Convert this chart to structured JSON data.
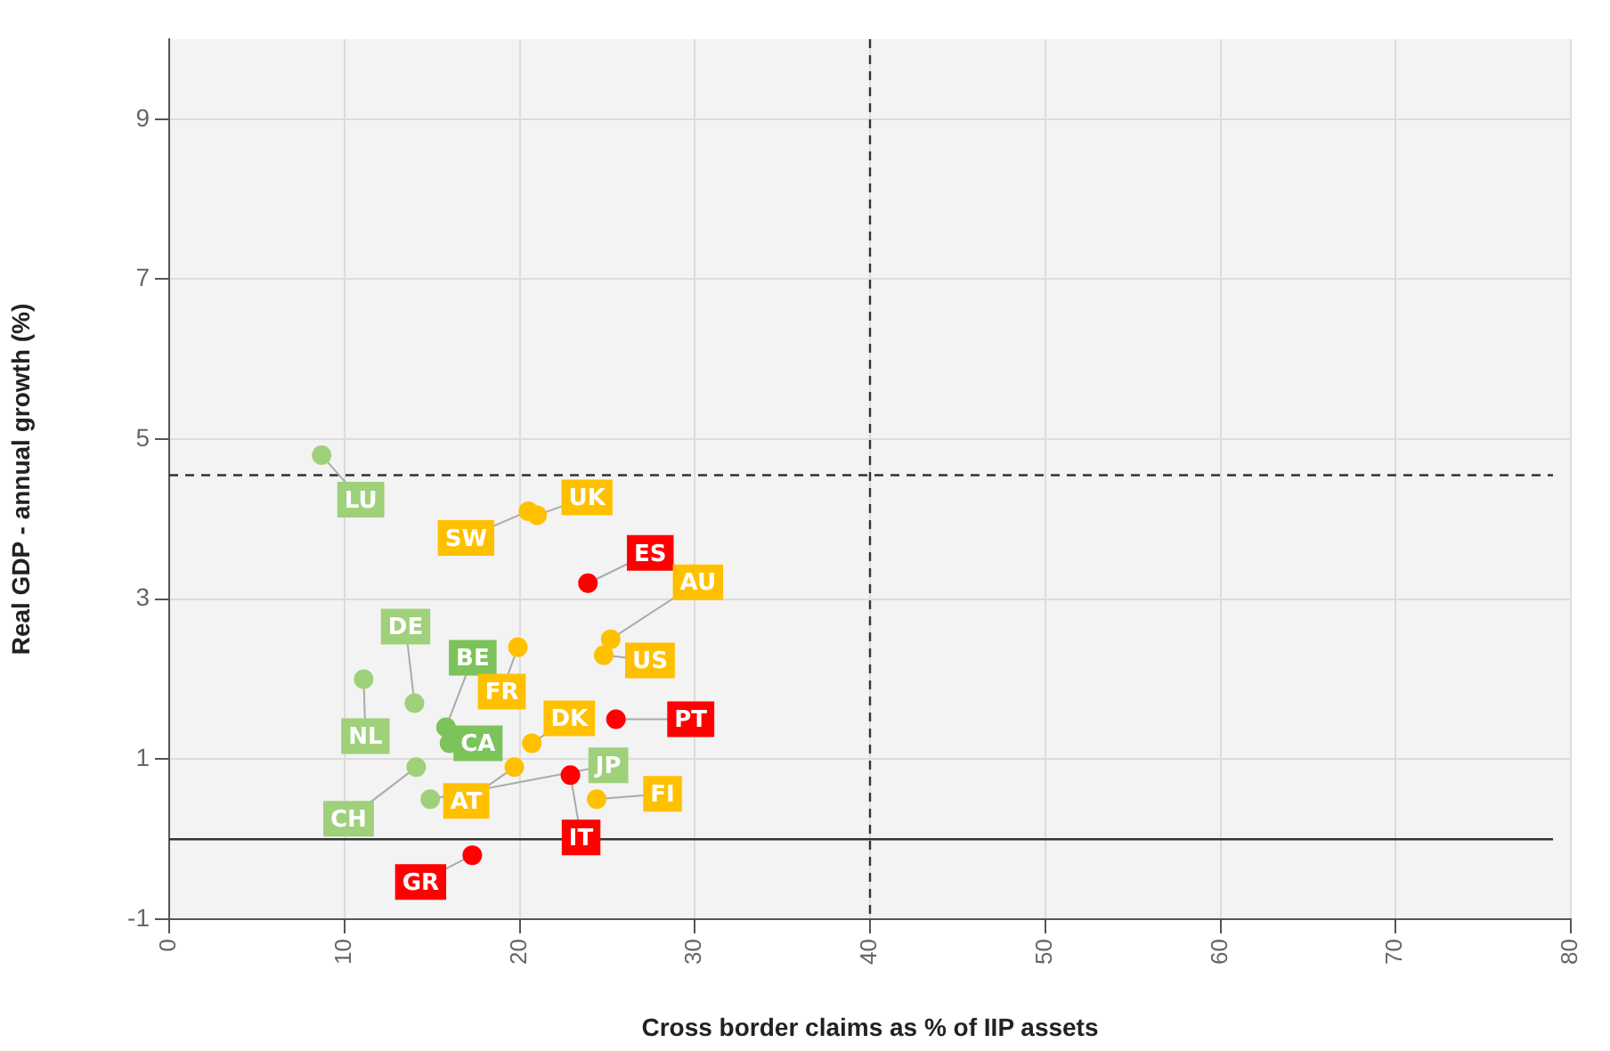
{
  "chart_data": {
    "type": "scatter",
    "xlabel": "Cross border claims as % of IIP assets",
    "ylabel": "Real GDP - annual growth (%)",
    "xlim": [
      0,
      80
    ],
    "xticks": [
      0,
      10,
      20,
      30,
      40,
      50,
      60,
      70,
      80
    ],
    "ylim": [
      -1,
      10
    ],
    "yticks": [
      -1,
      1,
      3,
      5,
      7,
      9
    ],
    "grid": true,
    "legend": false,
    "marker": "circle",
    "ref_lines": [
      {
        "axis": "y",
        "value": 4.55,
        "line_style": "dashed"
      },
      {
        "axis": "x",
        "value": 40,
        "line_style": "dashed"
      },
      {
        "axis": "y",
        "value": 0,
        "line_style": "solid"
      }
    ],
    "series": [
      {
        "name": "LU",
        "color": "#9fd07a",
        "x": [
          8.7
        ],
        "values": [
          4.8
        ]
      },
      {
        "name": "SW",
        "color": "#ffc000",
        "x": [
          20.5
        ],
        "values": [
          4.1
        ]
      },
      {
        "name": "UK",
        "color": "#ffc000",
        "x": [
          21
        ],
        "values": [
          4.05
        ]
      },
      {
        "name": "ES",
        "color": "#ff0000",
        "x": [
          23.9
        ],
        "values": [
          3.2
        ]
      },
      {
        "name": "AU",
        "color": "#ffc000",
        "x": [
          25.2
        ],
        "values": [
          2.5
        ]
      },
      {
        "name": "DE",
        "color": "#9fd07a",
        "x": [
          14
        ],
        "values": [
          1.7
        ]
      },
      {
        "name": "BE",
        "color": "#7cc35a",
        "x": [
          15.8
        ],
        "values": [
          1.4
        ]
      },
      {
        "name": "FR",
        "color": "#ffc000",
        "x": [
          19.9
        ],
        "values": [
          2.4
        ]
      },
      {
        "name": "US",
        "color": "#ffc000",
        "x": [
          24.8
        ],
        "values": [
          2.3
        ]
      },
      {
        "name": "PT",
        "color": "#ff0000",
        "x": [
          25.5
        ],
        "values": [
          1.5
        ]
      },
      {
        "name": "NL",
        "color": "#9fd07a",
        "x": [
          11.1
        ],
        "values": [
          2
        ]
      },
      {
        "name": "CA",
        "color": "#7cc35a",
        "x": [
          16
        ],
        "values": [
          1.2
        ]
      },
      {
        "name": "DK",
        "color": "#ffc000",
        "x": [
          20.7
        ],
        "values": [
          1.2
        ]
      },
      {
        "name": "JP",
        "color": "#9fd07a",
        "x": [
          14.9
        ],
        "values": [
          0.5
        ]
      },
      {
        "name": "AT",
        "color": "#ffc000",
        "x": [
          19.7
        ],
        "values": [
          0.9
        ]
      },
      {
        "name": "FI",
        "color": "#ffc000",
        "x": [
          24.4
        ],
        "values": [
          0.5
        ]
      },
      {
        "name": "CH",
        "color": "#9fd07a",
        "x": [
          14.1
        ],
        "values": [
          0.9
        ]
      },
      {
        "name": "IT",
        "color": "#ff0000",
        "x": [
          22.9
        ],
        "values": [
          0.8
        ]
      },
      {
        "name": "GR",
        "color": "#ff0000",
        "x": [
          17.3
        ],
        "values": [
          -0.2
        ]
      }
    ]
  }
}
